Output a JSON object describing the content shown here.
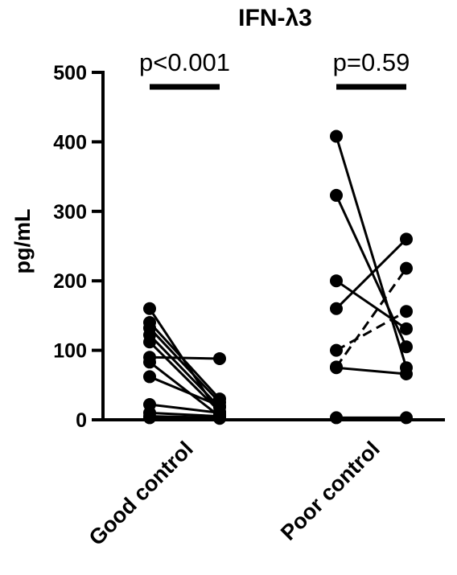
{
  "chart_data": {
    "type": "scatter",
    "title": "IFN-λ3",
    "ylabel": "pg/mL",
    "ylim": [
      0,
      500
    ],
    "yticks": [
      0,
      100,
      200,
      300,
      400,
      500
    ],
    "ytick_labels": [
      "0",
      "100",
      "200",
      "300",
      "400",
      "500"
    ],
    "grid": false,
    "groups": [
      {
        "label": "Good control",
        "p_value": "p<0.001",
        "pairs": [
          {
            "before": 160,
            "after": 8,
            "dashed": false
          },
          {
            "before": 140,
            "after": 30,
            "dashed": false
          },
          {
            "before": 132,
            "after": 25,
            "dashed": false
          },
          {
            "before": 122,
            "after": 18,
            "dashed": false
          },
          {
            "before": 112,
            "after": 12,
            "dashed": false
          },
          {
            "before": 90,
            "after": 88,
            "dashed": false
          },
          {
            "before": 83,
            "after": 5,
            "dashed": false
          },
          {
            "before": 62,
            "after": 20,
            "dashed": false
          },
          {
            "before": 22,
            "after": 10,
            "dashed": false
          },
          {
            "before": 10,
            "after": 5,
            "dashed": false
          },
          {
            "before": 5,
            "after": 3,
            "dashed": false
          },
          {
            "before": 3,
            "after": 2,
            "dashed": false
          }
        ]
      },
      {
        "label": "Poor control",
        "p_value": "p=0.59",
        "pairs": [
          {
            "before": 408,
            "after": 75,
            "dashed": false
          },
          {
            "before": 323,
            "after": 105,
            "dashed": false
          },
          {
            "before": 200,
            "after": 131,
            "dashed": false
          },
          {
            "before": 160,
            "after": 260,
            "dashed": false
          },
          {
            "before": 100,
            "after": 156,
            "dashed": true
          },
          {
            "before": 76,
            "after": 218,
            "dashed": true
          },
          {
            "before": 75,
            "after": 66,
            "dashed": false
          },
          {
            "before": 3,
            "after": 3,
            "dashed": false
          }
        ]
      }
    ]
  }
}
